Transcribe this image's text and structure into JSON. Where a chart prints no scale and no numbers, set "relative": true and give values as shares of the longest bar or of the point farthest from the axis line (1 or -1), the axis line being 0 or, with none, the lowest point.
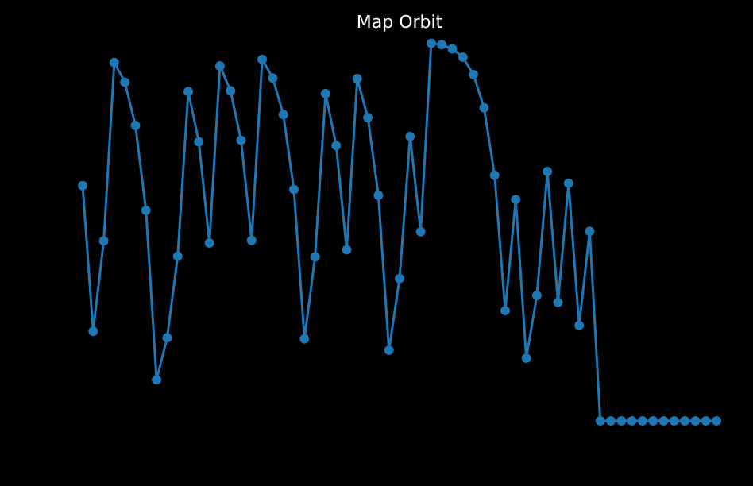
{
  "chart_data": {
    "type": "line",
    "title": "Map Orbit",
    "relative": true,
    "marker": "circle",
    "line_style": "solid",
    "categories": [
      null,
      null,
      null,
      null,
      null,
      null,
      null,
      null,
      null,
      null,
      null,
      null,
      null,
      null,
      null,
      null,
      null,
      null,
      null,
      null,
      null,
      null,
      null,
      null,
      null,
      null,
      null,
      null,
      null,
      null,
      null,
      null,
      null,
      null,
      null,
      null,
      null,
      null,
      null,
      null,
      null,
      null,
      null,
      null,
      null,
      null,
      null,
      null,
      null,
      null,
      null,
      null,
      null,
      null,
      null,
      null,
      null,
      null,
      null,
      null,
      null
    ],
    "series": [
      {
        "color": "#1f77b4",
        "values": [
          0.623,
          0.237,
          0.477,
          0.949,
          0.897,
          0.782,
          0.557,
          0.109,
          0.22,
          0.436,
          0.872,
          0.739,
          0.471,
          0.94,
          0.874,
          0.743,
          0.478,
          0.957,
          0.908,
          0.811,
          0.613,
          0.217,
          0.434,
          0.867,
          0.729,
          0.453,
          0.906,
          0.803,
          0.597,
          0.187,
          0.377,
          0.753,
          0.501,
          1,
          0.996,
          0.985,
          0.963,
          0.917,
          0.829,
          0.65,
          0.292,
          0.586,
          0.166,
          0.332,
          0.66,
          0.314,
          0.629,
          0.253,
          0.502,
          0,
          0,
          0,
          0,
          0,
          0,
          0,
          0,
          0,
          0,
          0,
          0
        ]
      }
    ]
  }
}
